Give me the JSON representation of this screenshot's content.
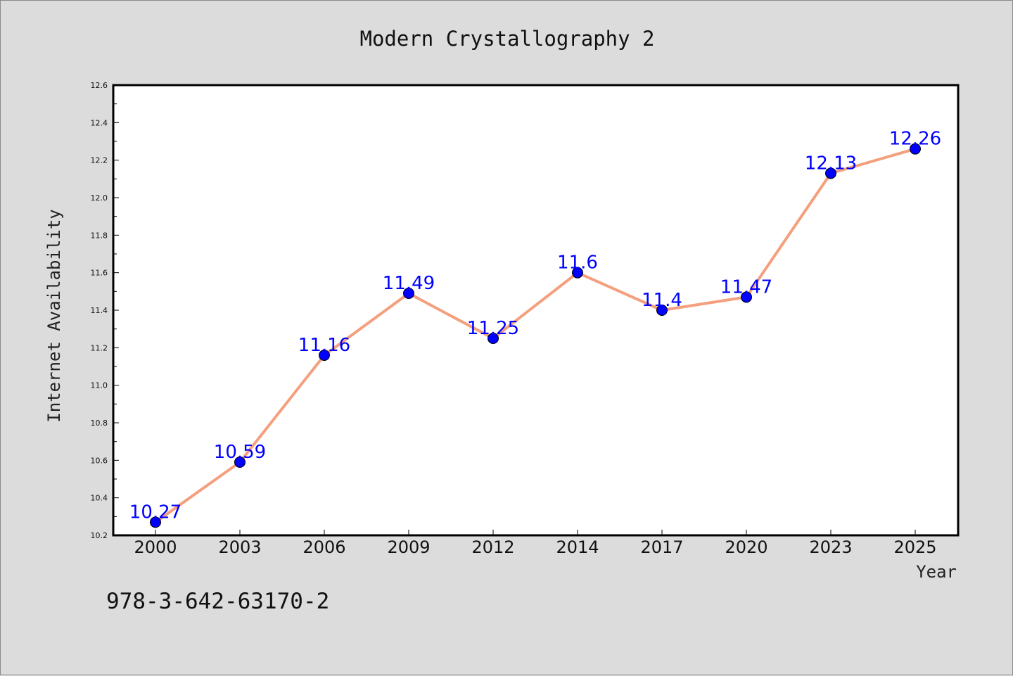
{
  "chart_data": {
    "type": "line",
    "title": "Modern Crystallography 2",
    "xlabel": "Year",
    "ylabel": "Internet Availability",
    "categories": [
      "2000",
      "2003",
      "2006",
      "2009",
      "2012",
      "2014",
      "2017",
      "2020",
      "2023",
      "2025"
    ],
    "series": [
      {
        "values": [
          10.27,
          10.59,
          11.16,
          11.49,
          11.25,
          11.6,
          11.4,
          11.47,
          12.13,
          12.26
        ],
        "data_labels": [
          "10.27",
          "10.59",
          "11.16",
          "11.49",
          "11.25",
          "11.6",
          "11.4",
          "11.47",
          "12.13",
          "12.26"
        ]
      }
    ],
    "ylim": [
      10.2,
      12.6
    ],
    "yticks": [
      "10.2",
      "10.4",
      "10.6",
      "10.8",
      "11.0",
      "11.2",
      "11.4",
      "11.6",
      "11.8",
      "12.0",
      "12.2",
      "12.4",
      "12.6"
    ],
    "grid": false,
    "legend": "none",
    "colors": {
      "line": "#f4a07e",
      "marker": "#0000ff",
      "label": "#0000ff"
    }
  },
  "footer": {
    "isbn": "978-3-642-63170-2"
  }
}
